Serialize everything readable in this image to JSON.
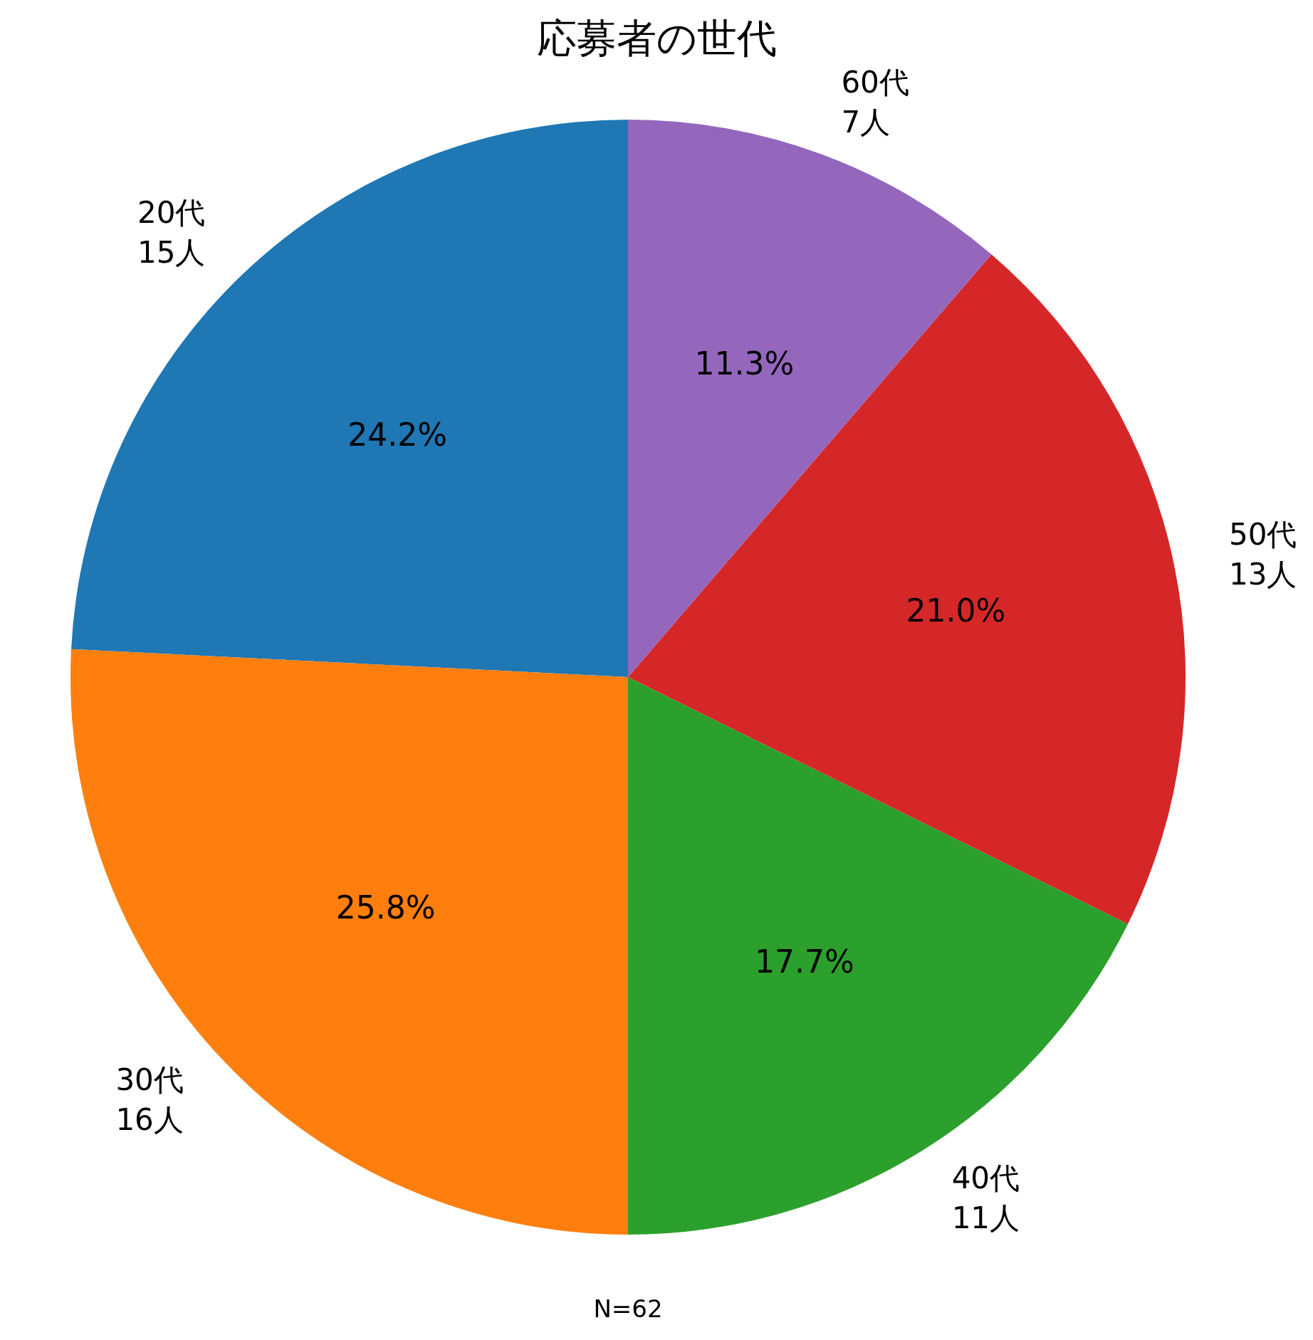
{
  "chart_data": {
    "type": "pie",
    "title": "応募者の世代",
    "categories": [
      "20代\n15人",
      "30代\n16人",
      "40代\n11人",
      "50代\n13人",
      "60代\n7人"
    ],
    "values": [
      24.2,
      25.8,
      17.7,
      21.0,
      11.3
    ],
    "colors": [
      "#1f77b4",
      "#ff7f0e",
      "#2ca02c",
      "#d62728",
      "#9467bd"
    ],
    "value_labels": [
      "24.2%",
      "25.8%",
      "17.7%",
      "21.0%",
      "11.3%"
    ],
    "annotations": [
      "N=62"
    ]
  }
}
